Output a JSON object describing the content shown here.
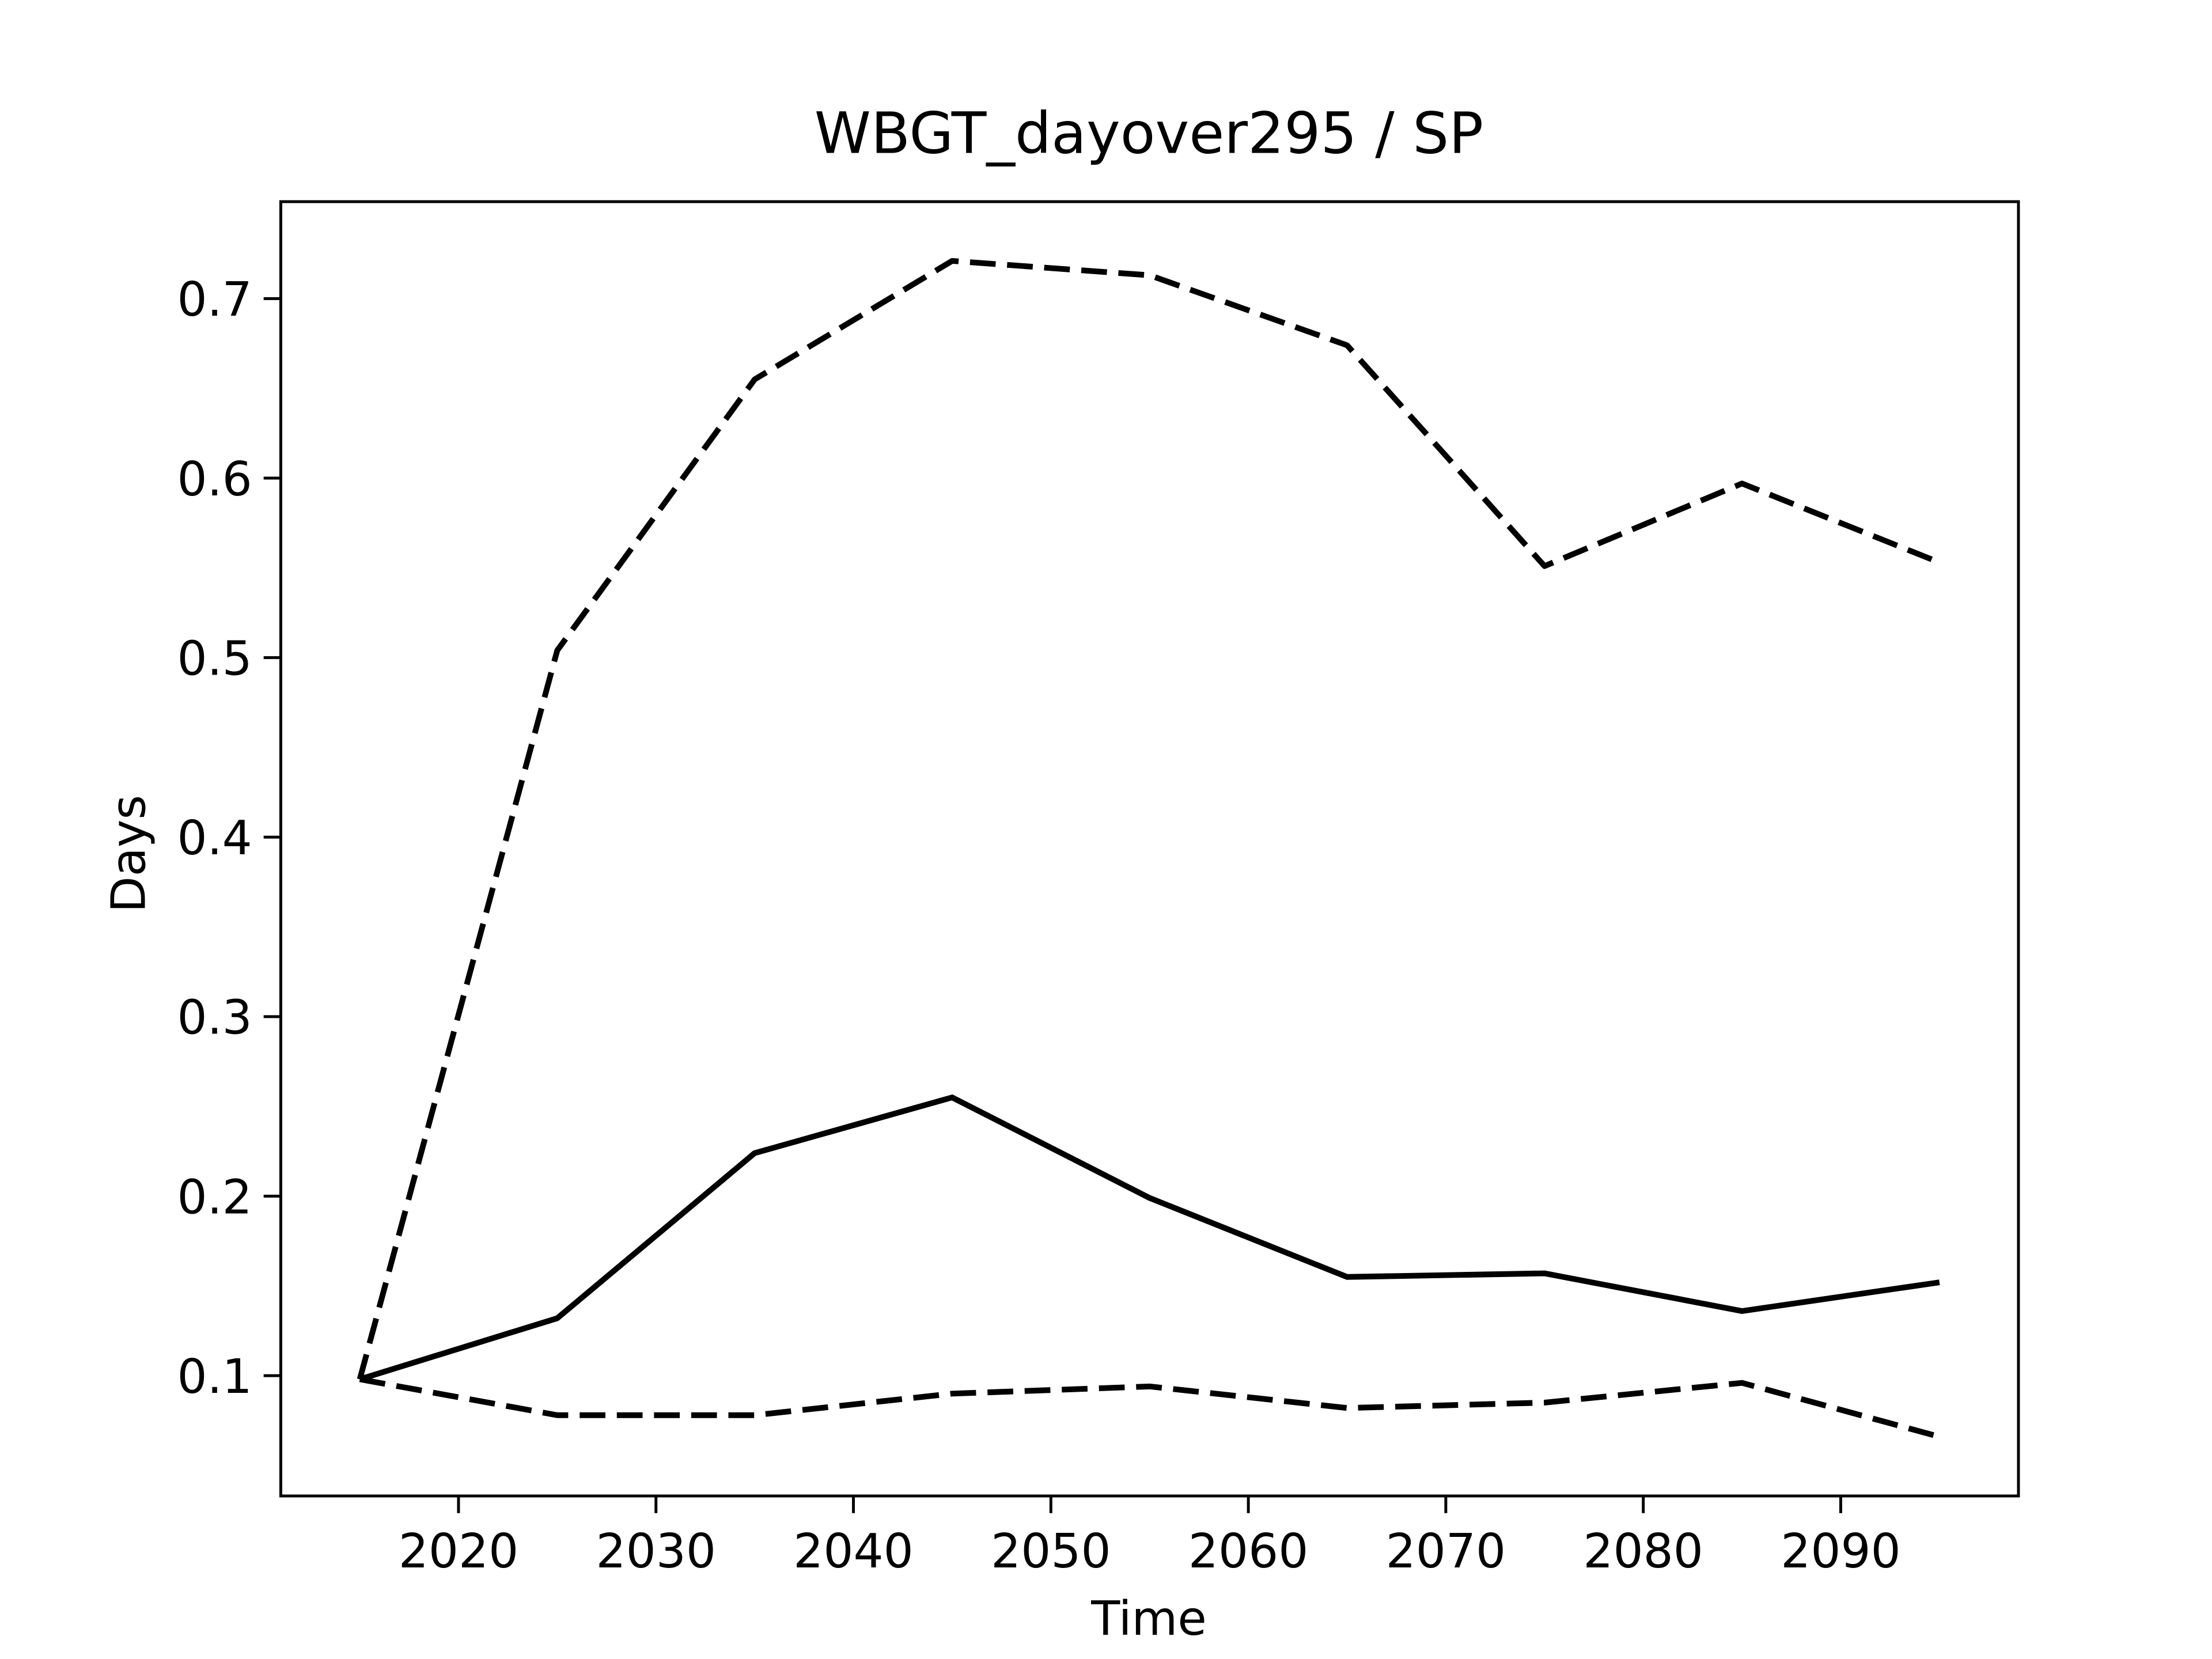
{
  "chart_data": {
    "type": "line",
    "title": "WBGT_dayover295 / SP",
    "xlabel": "Time",
    "ylabel": "Days",
    "x": [
      2015,
      2025,
      2035,
      2045,
      2055,
      2065,
      2075,
      2085,
      2095
    ],
    "series": [
      {
        "color": "#000000",
        "dashed": false,
        "values": [
          0.098,
          0.132,
          0.224,
          0.255,
          0.199,
          0.155,
          0.157,
          0.136,
          0.152
        ]
      },
      {
        "color": "#000000",
        "dashed": true,
        "values": [
          0.098,
          0.504,
          0.655,
          0.721,
          0.713,
          0.674,
          0.551,
          0.597,
          0.553
        ]
      },
      {
        "color": "#000000",
        "dashed": true,
        "values": [
          0.098,
          0.078,
          0.078,
          0.09,
          0.094,
          0.082,
          0.085,
          0.096,
          0.066
        ]
      }
    ],
    "xlim": [
      2011,
      2099
    ],
    "xticks": [
      2020,
      2030,
      2040,
      2050,
      2060,
      2070,
      2080,
      2090
    ],
    "ylim": [
      0.033,
      0.754
    ],
    "yticks": [
      0.1,
      0.2,
      0.3,
      0.4,
      0.5,
      0.6,
      0.7
    ],
    "grid": false
  }
}
